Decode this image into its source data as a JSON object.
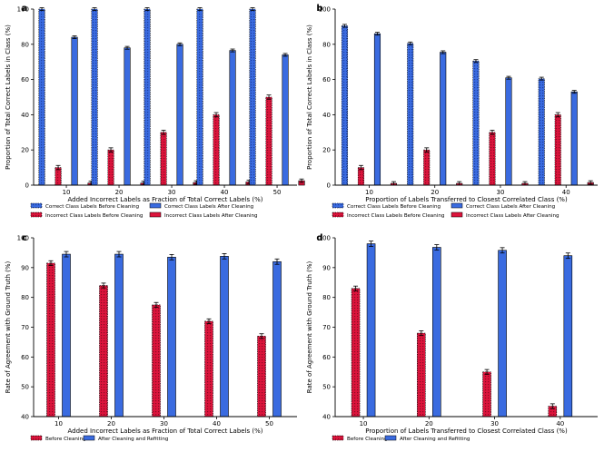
{
  "colors": {
    "blue": "#3A6BE0",
    "red": "#DC143C",
    "axis": "#000000"
  },
  "chart_data": [
    {
      "panel": "a",
      "type": "bar",
      "xlabel": "Added Incorrect Labels as Fraction of Total Correct Labels (%)",
      "ylabel": "Proportion of Total Correct Labels in Class (%)",
      "categories": [
        "10",
        "20",
        "30",
        "40",
        "50"
      ],
      "ylim": [
        0,
        100
      ],
      "yticks": [
        0,
        20,
        40,
        60,
        80,
        100
      ],
      "grid": false,
      "legend_position": "bottom",
      "series": [
        {
          "name": "Correct Class Labels Before Cleaning",
          "color": "blue",
          "hatched": true,
          "values": [
            100,
            100,
            100,
            100,
            100
          ],
          "err": [
            0.8,
            0.8,
            0.8,
            0.8,
            0.8
          ]
        },
        {
          "name": "Incorrect Class Labels Before Cleaning",
          "color": "red",
          "hatched": true,
          "values": [
            10,
            20,
            30,
            40,
            50
          ],
          "err": [
            1.2,
            1.2,
            1.2,
            1.2,
            1.2
          ]
        },
        {
          "name": "Correct Class Labels After Cleaning",
          "color": "blue",
          "hatched": false,
          "values": [
            84,
            78,
            80,
            76.5,
            74
          ],
          "err": [
            0.8,
            0.8,
            0.8,
            0.8,
            0.8
          ]
        },
        {
          "name": "Incorrect Class Labels After Cleaning",
          "color": "red",
          "hatched": false,
          "values": [
            1.2,
            1.2,
            1.5,
            1.8,
            2.5
          ],
          "err": [
            1.0,
            1.0,
            1.0,
            1.0,
            1.0
          ]
        }
      ]
    },
    {
      "panel": "b",
      "type": "bar",
      "xlabel": "Proportion of Labels Transferred to Closest Correlated Class (%)",
      "ylabel": "Proportion of Total Correct Labels in Class (%)",
      "categories": [
        "10",
        "20",
        "30",
        "40"
      ],
      "ylim": [
        0,
        100
      ],
      "yticks": [
        0,
        20,
        40,
        60,
        80,
        100
      ],
      "grid": false,
      "legend_position": "bottom",
      "series": [
        {
          "name": "Correct Class Labels Before Cleaning",
          "color": "blue",
          "hatched": true,
          "values": [
            90.5,
            80.5,
            70.5,
            60.5
          ],
          "err": [
            0.8,
            0.8,
            0.8,
            0.8
          ]
        },
        {
          "name": "Incorrect Class Labels Before Cleaning",
          "color": "red",
          "hatched": true,
          "values": [
            10,
            20,
            30,
            40
          ],
          "err": [
            1.2,
            1.2,
            1.2,
            1.2
          ]
        },
        {
          "name": "Correct Class Labels After Cleaning",
          "color": "blue",
          "hatched": false,
          "values": [
            86,
            75.5,
            61,
            53
          ],
          "err": [
            0.8,
            0.8,
            0.8,
            0.8
          ]
        },
        {
          "name": "Incorrect Class Labels After Cleaning",
          "color": "red",
          "hatched": false,
          "values": [
            1,
            1,
            1,
            1.5
          ],
          "err": [
            1.0,
            1.0,
            1.0,
            1.0
          ]
        }
      ]
    },
    {
      "panel": "c",
      "type": "bar",
      "xlabel": "Added Incorrect Labels as Fraction of Total Correct Labels (%)",
      "ylabel": "Rate of Agreement with Ground Truth (%)",
      "categories": [
        "10",
        "20",
        "30",
        "40",
        "50"
      ],
      "ylim": [
        40,
        100
      ],
      "yticks": [
        40,
        50,
        60,
        70,
        80,
        90,
        100
      ],
      "grid": false,
      "legend_position": "bottom",
      "series": [
        {
          "name": "Before Cleaning",
          "color": "red",
          "hatched": true,
          "values": [
            91.5,
            84,
            77.5,
            72,
            67
          ],
          "err": [
            0.8,
            0.8,
            0.8,
            0.8,
            0.8
          ]
        },
        {
          "name": "After Cleaning and Refitting",
          "color": "blue",
          "hatched": false,
          "values": [
            94.5,
            94.5,
            93.5,
            93.8,
            92
          ],
          "err": [
            0.9,
            0.9,
            0.9,
            0.9,
            0.9
          ]
        }
      ]
    },
    {
      "panel": "d",
      "type": "bar",
      "xlabel": "Proportion of Labels Transferred to Closest Correlated Class (%)",
      "ylabel": "Rate of Agreement with Ground Truth (%)",
      "categories": [
        "10",
        "20",
        "30",
        "40"
      ],
      "ylim": [
        40,
        100
      ],
      "yticks": [
        40,
        50,
        60,
        70,
        80,
        90,
        100
      ],
      "grid": false,
      "legend_position": "bottom",
      "series": [
        {
          "name": "Before Cleaning",
          "color": "red",
          "hatched": true,
          "values": [
            83,
            68,
            55,
            43.5
          ],
          "err": [
            0.8,
            0.8,
            0.8,
            0.8
          ]
        },
        {
          "name": "After Cleaning and Refitting",
          "color": "blue",
          "hatched": false,
          "values": [
            98,
            96.8,
            95.8,
            94
          ],
          "err": [
            0.9,
            0.9,
            0.9,
            0.9
          ]
        }
      ]
    }
  ]
}
